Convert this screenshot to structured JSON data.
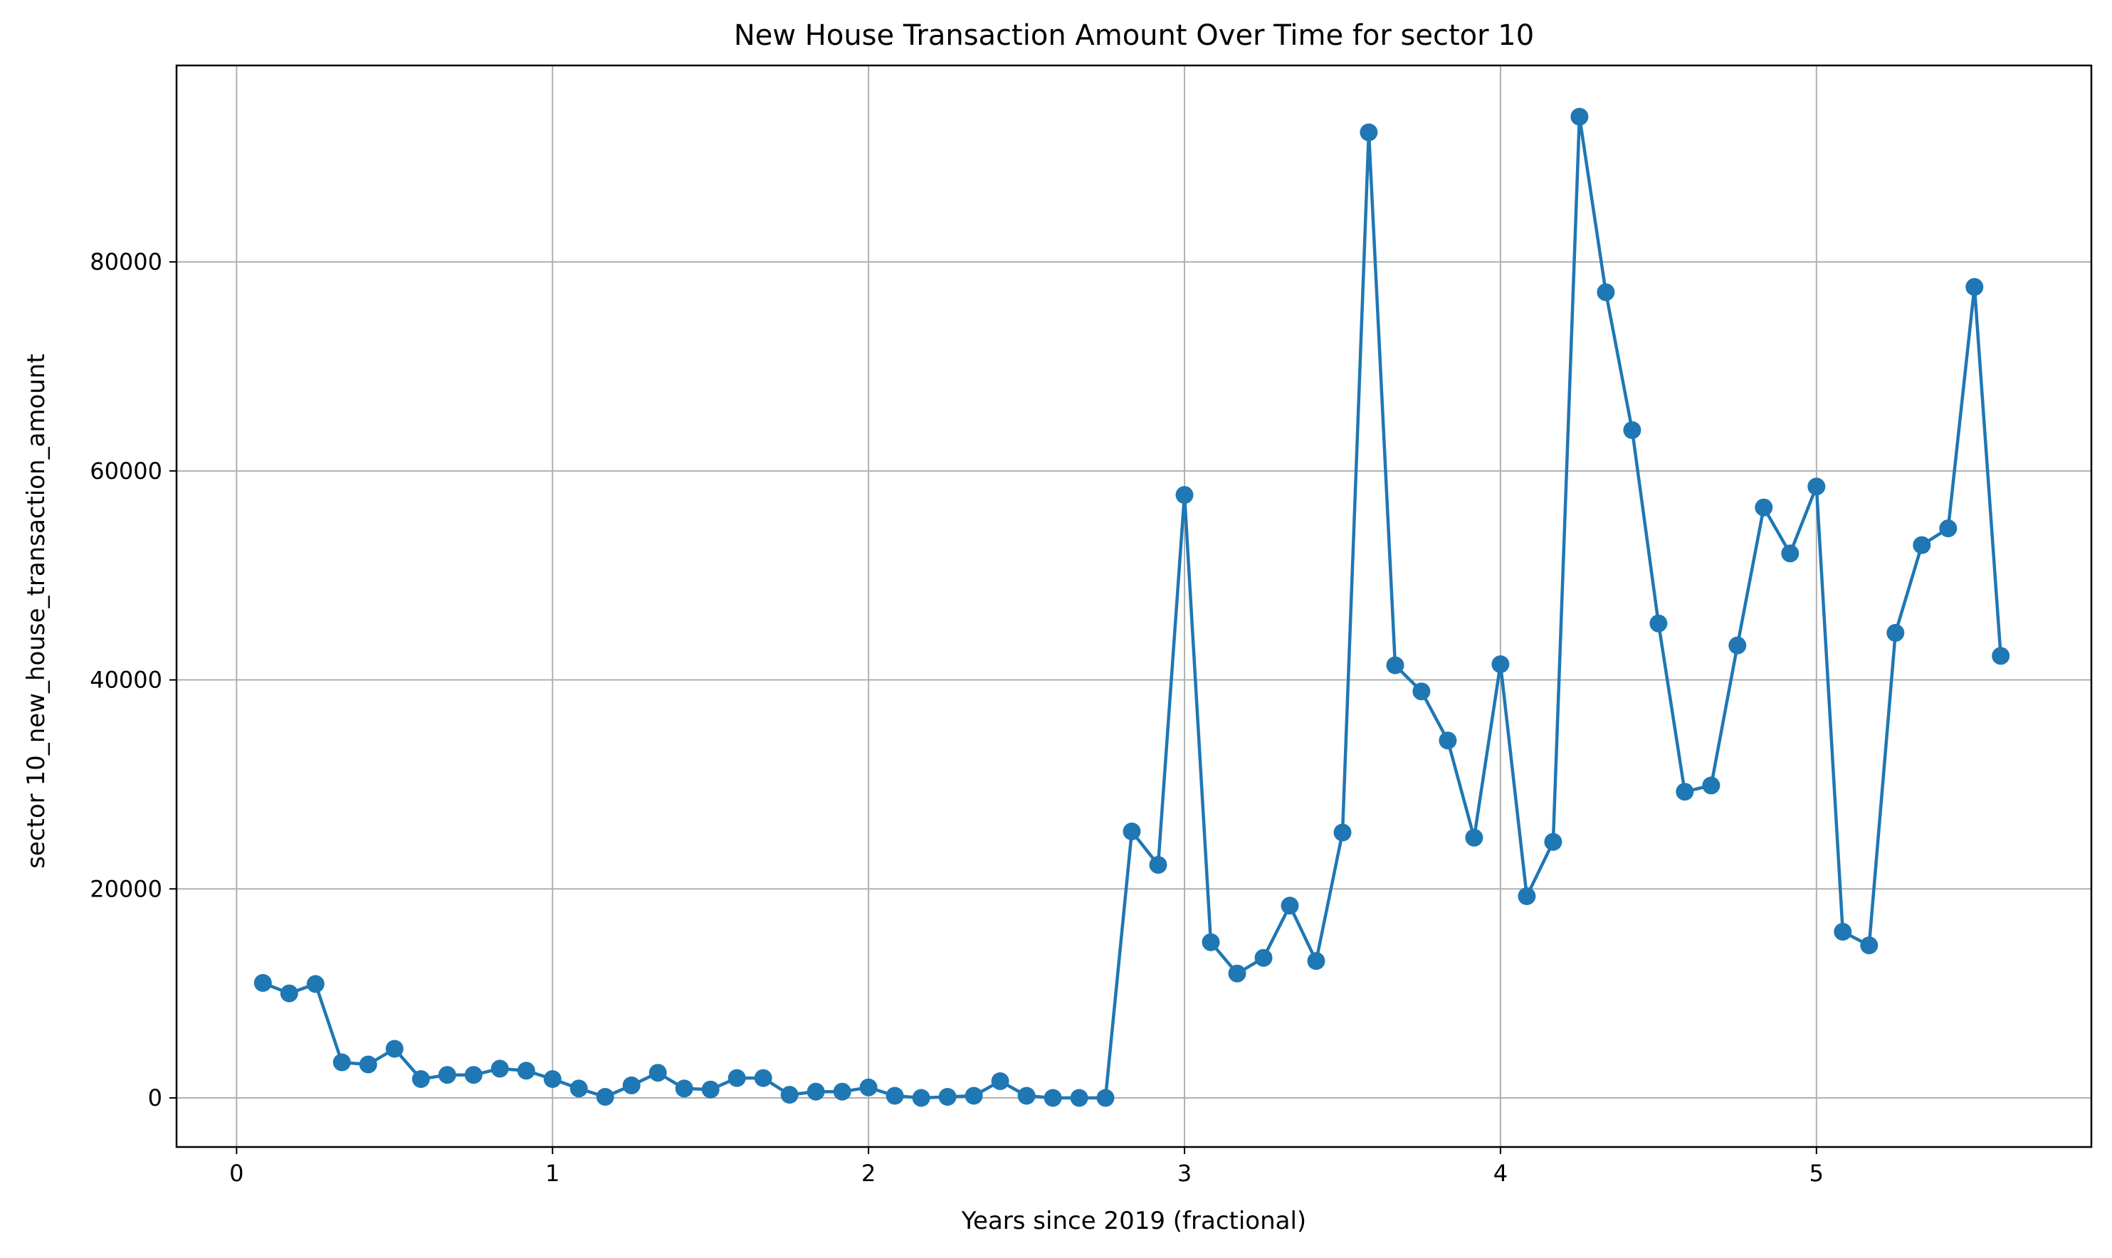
{
  "chart_data": {
    "type": "line",
    "title": "New House Transaction Amount Over Time for sector 10",
    "xlabel": "Years since 2019 (fractional)",
    "ylabel": "sector 10_new_house_transaction_amount",
    "xlim": [
      -0.19,
      5.87
    ],
    "ylim": [
      -4700,
      98800
    ],
    "xticks": [
      0,
      1,
      2,
      3,
      4,
      5
    ],
    "yticks": [
      0,
      20000,
      40000,
      60000,
      80000
    ],
    "grid": true,
    "colors": {
      "series": "#1f77b4",
      "grid": "#b0b0b0",
      "axes": "#000000"
    },
    "series": [
      {
        "marker": "circle",
        "x": [
          0.0833,
          0.1667,
          0.25,
          0.3333,
          0.4167,
          0.5,
          0.5833,
          0.6667,
          0.75,
          0.8333,
          0.9167,
          1.0,
          1.0833,
          1.1667,
          1.25,
          1.3333,
          1.4167,
          1.5,
          1.5833,
          1.6667,
          1.75,
          1.8333,
          1.9167,
          2.0,
          2.0833,
          2.1667,
          2.25,
          2.3333,
          2.4167,
          2.5,
          2.5833,
          2.6667,
          2.75,
          2.8333,
          2.9167,
          3.0,
          3.0833,
          3.1667,
          3.25,
          3.3333,
          3.4167,
          3.5,
          3.5833,
          3.6667,
          3.75,
          3.8333,
          3.9167,
          4.0,
          4.0833,
          4.1667,
          4.25,
          4.3333,
          4.4167,
          4.5,
          4.5833,
          4.6667,
          4.75,
          4.8333,
          4.9167,
          5.0,
          5.0833,
          5.1667,
          5.25,
          5.3333,
          5.4167,
          5.5,
          5.5833
        ],
        "y": [
          11000,
          10000,
          10900,
          3400,
          3200,
          4700,
          1800,
          2200,
          2200,
          2800,
          2600,
          1800,
          900,
          100,
          1200,
          2400,
          900,
          800,
          1900,
          1900,
          300,
          600,
          600,
          1000,
          200,
          0,
          100,
          200,
          1600,
          200,
          0,
          0,
          0,
          25500,
          22300,
          57700,
          14900,
          11900,
          13400,
          18400,
          13100,
          25400,
          92400,
          41400,
          38900,
          34200,
          24900,
          41500,
          19300,
          24500,
          93900,
          77100,
          63900,
          45400,
          29300,
          29900,
          43300,
          56500,
          52100,
          58500,
          15900,
          14600,
          44500,
          52900,
          54500,
          77600,
          42300
        ]
      }
    ]
  }
}
